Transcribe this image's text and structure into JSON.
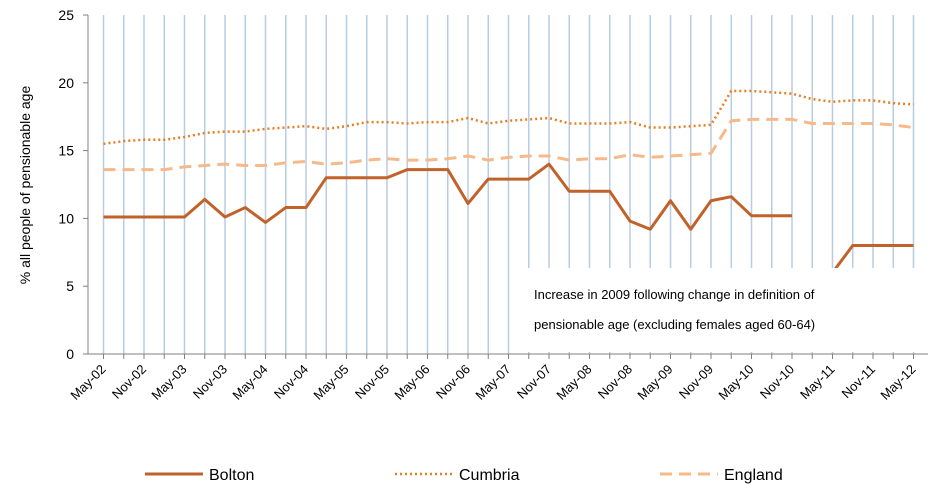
{
  "chart_data": {
    "type": "line",
    "ylabel": "% all people of pensionable age",
    "xlabel": "",
    "ylim": [
      0,
      25
    ],
    "yticks": [
      0,
      5,
      10,
      15,
      20,
      25
    ],
    "grid": "vertical",
    "legend_position": "bottom",
    "x": [
      "May-02",
      "Aug-02",
      "Nov-02",
      "Feb-03",
      "May-03",
      "Aug-03",
      "Nov-03",
      "Feb-04",
      "May-04",
      "Aug-04",
      "Nov-04",
      "Feb-05",
      "May-05",
      "Aug-05",
      "Nov-05",
      "Feb-06",
      "May-06",
      "Aug-06",
      "Nov-06",
      "Feb-07",
      "May-07",
      "Aug-07",
      "Nov-07",
      "Feb-08",
      "May-08",
      "Aug-08",
      "Nov-08",
      "Feb-09",
      "May-09",
      "Aug-09",
      "Nov-09",
      "Feb-10",
      "May-10",
      "Aug-10",
      "Nov-10",
      "Feb-11",
      "May-11",
      "Aug-11",
      "Nov-11",
      "Feb-12",
      "May-12"
    ],
    "x_tick_labels": [
      "May-02",
      "Nov-02",
      "May-03",
      "Nov-03",
      "May-04",
      "Nov-04",
      "May-05",
      "Nov-05",
      "May-06",
      "Nov-06",
      "May-07",
      "Nov-07",
      "May-08",
      "Nov-08",
      "May-09",
      "Nov-09",
      "May-10",
      "Nov-10",
      "May-11",
      "Nov-11",
      "May-12"
    ],
    "series": [
      {
        "name": "Bolton",
        "color": "#C0622A",
        "style": "solid",
        "values": [
          10.1,
          10.1,
          10.1,
          10.1,
          10.1,
          11.4,
          10.1,
          10.8,
          9.7,
          10.8,
          10.8,
          13.0,
          13.0,
          13.0,
          13.0,
          13.6,
          13.6,
          13.6,
          11.1,
          12.9,
          12.9,
          12.9,
          14.0,
          12.0,
          12.0,
          12.0,
          9.8,
          9.2,
          11.3,
          9.2,
          11.3,
          11.6,
          10.2,
          10.2,
          10.2,
          null,
          6.0,
          8.0,
          8.0,
          8.0,
          8.0
        ]
      },
      {
        "name": "Cumbria",
        "color": "#E67E22",
        "style": "dotted",
        "values": [
          15.5,
          15.7,
          15.8,
          15.8,
          16.0,
          16.3,
          16.4,
          16.4,
          16.6,
          16.7,
          16.8,
          16.6,
          16.8,
          17.1,
          17.1,
          17.0,
          17.1,
          17.1,
          17.4,
          17.0,
          17.2,
          17.3,
          17.4,
          17.0,
          17.0,
          17.0,
          17.1,
          16.7,
          16.7,
          16.8,
          16.9,
          19.4,
          19.4,
          19.3,
          19.2,
          18.8,
          18.6,
          18.7,
          18.7,
          18.5,
          18.4
        ]
      },
      {
        "name": "England",
        "color": "#F5B98A",
        "style": "dashed",
        "values": [
          13.6,
          13.6,
          13.6,
          13.6,
          13.8,
          13.9,
          14.0,
          13.9,
          13.9,
          14.1,
          14.2,
          14.0,
          14.1,
          14.3,
          14.4,
          14.3,
          14.3,
          14.4,
          14.6,
          14.3,
          14.5,
          14.6,
          14.6,
          14.3,
          14.4,
          14.4,
          14.7,
          14.5,
          14.6,
          14.7,
          14.8,
          17.2,
          17.3,
          17.3,
          17.3,
          17.0,
          17.0,
          17.0,
          17.0,
          16.9,
          16.7
        ]
      }
    ],
    "annotation": {
      "lines": [
        "Increase in 2009 following change in definition of",
        "pensionable age (excluding females aged 60-64)"
      ]
    }
  }
}
